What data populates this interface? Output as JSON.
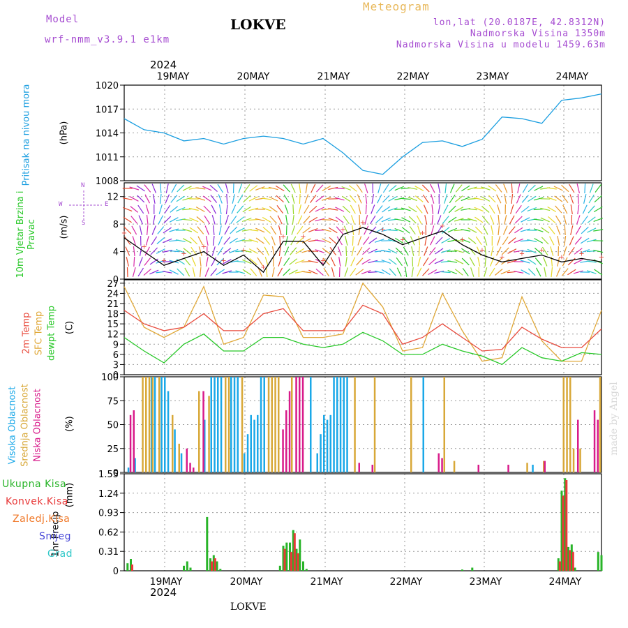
{
  "header": {
    "model_label": "Model",
    "model_name": "wrf-nmm_v3.9.1  e1km",
    "title": "LOKVE",
    "meteogram": "Meteogram",
    "coords": "lon,lat (20.0187E, 42.8312N)",
    "altitude": "Nadmorska Visina 1350m",
    "model_altitude": "Nadmorska Visina u modelu 1459.63m",
    "year_top": "2024",
    "year_bottom": "2024",
    "footer": "LOKVE",
    "watermark": "made by Angel"
  },
  "colors": {
    "pressure": "#1a9ee0",
    "temp2m": "#e84a3c",
    "sfc": "#e0a838",
    "dewpt": "#28c828",
    "high_cloud": "#1aa8e8",
    "mid_cloud": "#d8a838",
    "low_cloud": "#d81a8a",
    "total_rain": "#28b428",
    "conv_rain": "#e83838",
    "frozen": "#f07828",
    "snow": "#4848d8",
    "hail": "#30c8c8",
    "purple": "#a64dd1"
  },
  "chart_data": [
    {
      "type": "line",
      "title": "",
      "ylabel": "Pritisak na nivou mora",
      "yunit": "(hPa)",
      "ylim": [
        1008,
        1020
      ],
      "yticks": [
        "1020",
        "1017",
        "1014",
        "1011",
        "1008"
      ],
      "xlabels": [
        "19MAY",
        "20MAY",
        "21MAY",
        "22MAY",
        "23MAY",
        "24MAY"
      ],
      "x_hours": [
        0,
        6,
        12,
        18,
        24,
        30,
        36,
        42,
        48,
        54,
        60,
        66,
        72,
        78,
        84,
        90,
        96,
        102,
        108,
        114,
        120,
        126,
        132,
        138,
        144
      ],
      "series": [
        {
          "values": [
            1015.8,
            1014.4,
            1014.0,
            1013.0,
            1013.3,
            1012.6,
            1013.3,
            1013.6,
            1013.3,
            1012.6,
            1013.3,
            1011.5,
            1009.3,
            1008.8,
            1011.0,
            1012.8,
            1013.0,
            1012.3,
            1013.2,
            1016.0,
            1015.8,
            1015.2,
            1018.1,
            1018.4,
            1018.9
          ]
        }
      ]
    },
    {
      "type": "line",
      "title": "",
      "ylabel": "10m Vjetar Brzina i Pravac",
      "yunit": "(m/s)",
      "ylim": [
        0,
        14
      ],
      "yticks": [
        "12",
        "8",
        "4",
        "0"
      ],
      "compass": [
        "W",
        "N",
        "E",
        "S"
      ],
      "x_hours": [
        0,
        6,
        12,
        18,
        24,
        30,
        36,
        42,
        48,
        54,
        60,
        66,
        72,
        78,
        84,
        90,
        96,
        102,
        108,
        114,
        120,
        126,
        132,
        138,
        144
      ],
      "series": [
        {
          "name": "wind",
          "values": [
            6,
            4,
            2,
            3,
            4,
            2,
            3.5,
            1,
            5.5,
            5.5,
            2,
            6.5,
            7.5,
            6.5,
            5,
            6,
            7,
            5,
            3.5,
            2.5,
            3,
            3.5,
            2.5,
            3,
            2.5
          ]
        }
      ]
    },
    {
      "type": "line",
      "title": "",
      "ylabel": "2m Temp / SFC Temp / dewpt Temp",
      "yunit": "(C)",
      "ylim": [
        0,
        28
      ],
      "yticks": [
        "27",
        "24",
        "21",
        "18",
        "15",
        "12",
        "9",
        "6",
        "3",
        "0"
      ],
      "x_hours": [
        0,
        6,
        12,
        18,
        24,
        30,
        36,
        42,
        48,
        54,
        60,
        66,
        72,
        78,
        84,
        90,
        96,
        102,
        108,
        114,
        120,
        126,
        132,
        138,
        144
      ],
      "series": [
        {
          "name": "2m Temp",
          "values": [
            19,
            15,
            13,
            14,
            18,
            13,
            13,
            18,
            19.5,
            13,
            13,
            13,
            20.5,
            18,
            9,
            11,
            15,
            11,
            7,
            7.5,
            14,
            10.5,
            8,
            8,
            13.5
          ]
        },
        {
          "name": "SFC Temp",
          "values": [
            26,
            14,
            11,
            14,
            26,
            9,
            11,
            23.5,
            23,
            11,
            11,
            12,
            27,
            20,
            7,
            8,
            24,
            13,
            4,
            5,
            23,
            10,
            4,
            4,
            19
          ]
        },
        {
          "name": "dewpt Temp",
          "values": [
            11,
            7,
            3.5,
            9,
            12,
            7,
            7,
            11,
            11,
            9,
            8,
            9,
            12.5,
            10,
            6,
            6,
            9,
            7,
            5.5,
            3,
            8,
            5,
            4,
            6.5,
            6
          ]
        }
      ]
    },
    {
      "type": "bar",
      "title": "",
      "ylabel": "Visoka Oblacnost / Srednja Oblacnost / Niska Oblacnost",
      "yunit": "(%)",
      "ylim": [
        0,
        100
      ],
      "yticks": [
        "100",
        "75",
        "50",
        "25",
        "0"
      ],
      "series": [
        {
          "name": "Visoka Oblacnost",
          "x": [
            1,
            3,
            8,
            9,
            11,
            12,
            13,
            15,
            17,
            24,
            26,
            27,
            28,
            29,
            32,
            33,
            34,
            36,
            37,
            38,
            39,
            40,
            41,
            42,
            56,
            58,
            59,
            60,
            61,
            62,
            63,
            64,
            65,
            66,
            67,
            90,
            123
          ],
          "values": [
            5,
            15,
            100,
            100,
            100,
            100,
            85,
            45,
            20,
            55,
            100,
            100,
            100,
            100,
            100,
            100,
            100,
            20,
            40,
            60,
            55,
            60,
            100,
            100,
            100,
            20,
            40,
            60,
            55,
            60,
            100,
            100,
            100,
            100,
            100,
            100,
            8
          ]
        },
        {
          "name": "Srednja Oblacnost",
          "x": [
            5,
            6,
            7,
            8,
            10,
            14,
            16,
            22,
            25,
            30,
            31,
            35,
            43,
            44,
            45,
            46,
            50,
            69,
            75,
            86,
            96,
            99,
            121,
            126,
            132,
            133,
            134,
            135,
            137,
            143
          ],
          "values": [
            100,
            100,
            100,
            100,
            100,
            60,
            30,
            85,
            80,
            100,
            100,
            100,
            100,
            100,
            100,
            100,
            100,
            100,
            100,
            100,
            100,
            12,
            10,
            12,
            100,
            100,
            100,
            25,
            25,
            100
          ]
        },
        {
          "name": "Niska Oblacnost",
          "x": [
            1,
            2,
            18,
            19,
            20,
            23,
            47,
            48,
            49,
            51,
            52,
            53,
            70,
            74,
            94,
            95,
            106,
            115,
            126,
            136,
            141,
            142
          ],
          "values": [
            60,
            65,
            25,
            10,
            5,
            85,
            45,
            65,
            85,
            100,
            100,
            100,
            10,
            8,
            20,
            15,
            8,
            8,
            12,
            55,
            65,
            55
          ]
        }
      ]
    },
    {
      "type": "bar",
      "title": "",
      "ylabel": "1hr Precip",
      "yunit": "(mm)",
      "ylim": [
        0,
        1.55
      ],
      "yticks": [
        "1.55",
        "1.24",
        "0.93",
        "0.62",
        "0.31",
        "0"
      ],
      "legend": [
        "Ukupna Kisa",
        "Konvek.Kisa",
        "Zaledj.Kisa",
        "Snijeg",
        "Grad"
      ],
      "series": [
        {
          "name": "Ukupna Kisa",
          "x": [
            1,
            2,
            18,
            19,
            20,
            25,
            26,
            27,
            28,
            29,
            47,
            48,
            49,
            50,
            51,
            52,
            53,
            54,
            55,
            102,
            105,
            131,
            132,
            133,
            134,
            135,
            136,
            143,
            144
          ],
          "values": [
            0.12,
            0.19,
            0.08,
            0.15,
            0.05,
            0.86,
            0.2,
            0.25,
            0.15,
            0.03,
            0.08,
            0.4,
            0.45,
            0.45,
            0.65,
            0.35,
            0.5,
            0.15,
            0.03,
            0.02,
            0.05,
            0.2,
            1.28,
            1.48,
            0.38,
            0.42,
            0.05,
            0.3,
            0.25
          ]
        },
        {
          "name": "Konvek.Kisa",
          "x": [
            2,
            26,
            27,
            48,
            50,
            51,
            52,
            131,
            132,
            133,
            134,
            135
          ],
          "values": [
            0.1,
            0.15,
            0.2,
            0.35,
            0.3,
            0.6,
            0.28,
            0.15,
            1.2,
            1.45,
            0.33,
            0.3
          ]
        }
      ]
    }
  ]
}
